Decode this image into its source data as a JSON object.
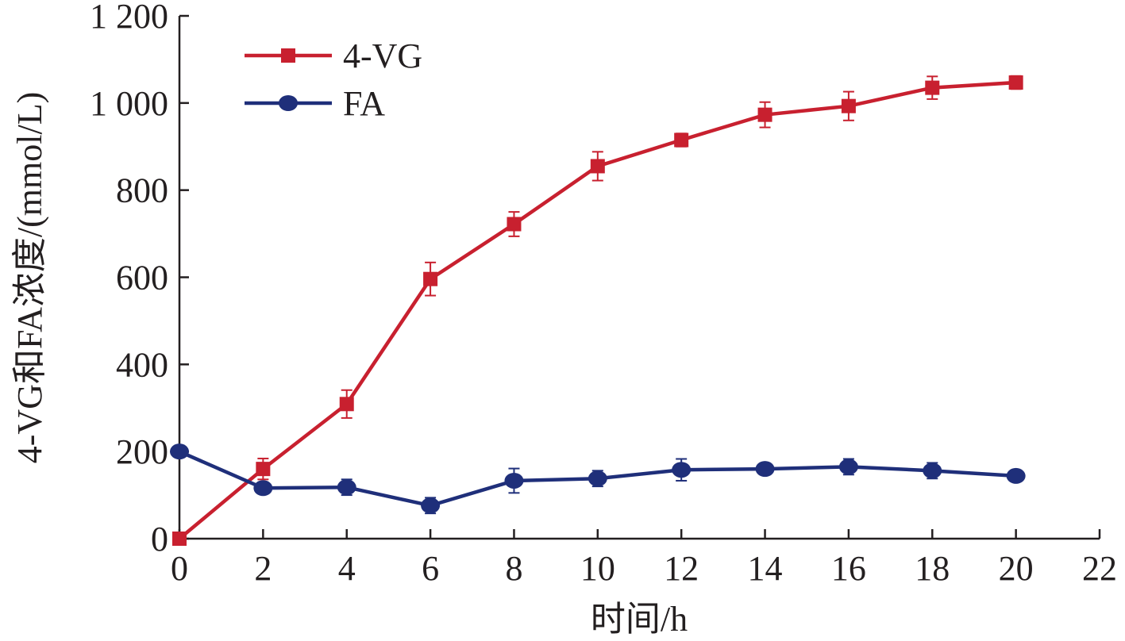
{
  "chart_data": {
    "type": "line",
    "title": "",
    "xlabel": "时间/h",
    "ylabel": "4-VG和FA浓度/(mmol/L)",
    "xlim": [
      0,
      22
    ],
    "ylim": [
      0,
      1200
    ],
    "xticks": [
      0,
      2,
      4,
      6,
      8,
      10,
      12,
      14,
      16,
      18,
      20,
      22
    ],
    "xtick_labels": [
      "0",
      "2",
      "4",
      "6",
      "8",
      "10",
      "12",
      "14",
      "16",
      "18",
      "20",
      "22"
    ],
    "yticks": [
      0,
      200,
      400,
      600,
      800,
      1000,
      1200
    ],
    "ytick_labels": [
      "0",
      "200",
      "400",
      "600",
      "800",
      "1 000",
      "1 200"
    ],
    "grid": false,
    "legend_position": "top-left",
    "x": [
      0,
      2,
      4,
      6,
      8,
      10,
      12,
      14,
      16,
      18,
      20
    ],
    "series": [
      {
        "name": "4-VG",
        "color": "#c8202f",
        "marker": "square",
        "values": [
          0,
          160,
          309,
          596,
          722,
          855,
          915,
          973,
          993,
          1035,
          1047
        ],
        "errors": [
          0,
          24,
          32,
          38,
          28,
          33,
          15,
          29,
          33,
          26,
          15
        ]
      },
      {
        "name": "FA",
        "color": "#1f2f7a",
        "marker": "circle",
        "values": [
          200,
          116,
          118,
          76,
          133,
          138,
          158,
          160,
          165,
          156,
          144
        ],
        "errors": [
          0,
          12,
          18,
          18,
          28,
          18,
          25,
          10,
          18,
          18,
          8
        ]
      }
    ]
  }
}
